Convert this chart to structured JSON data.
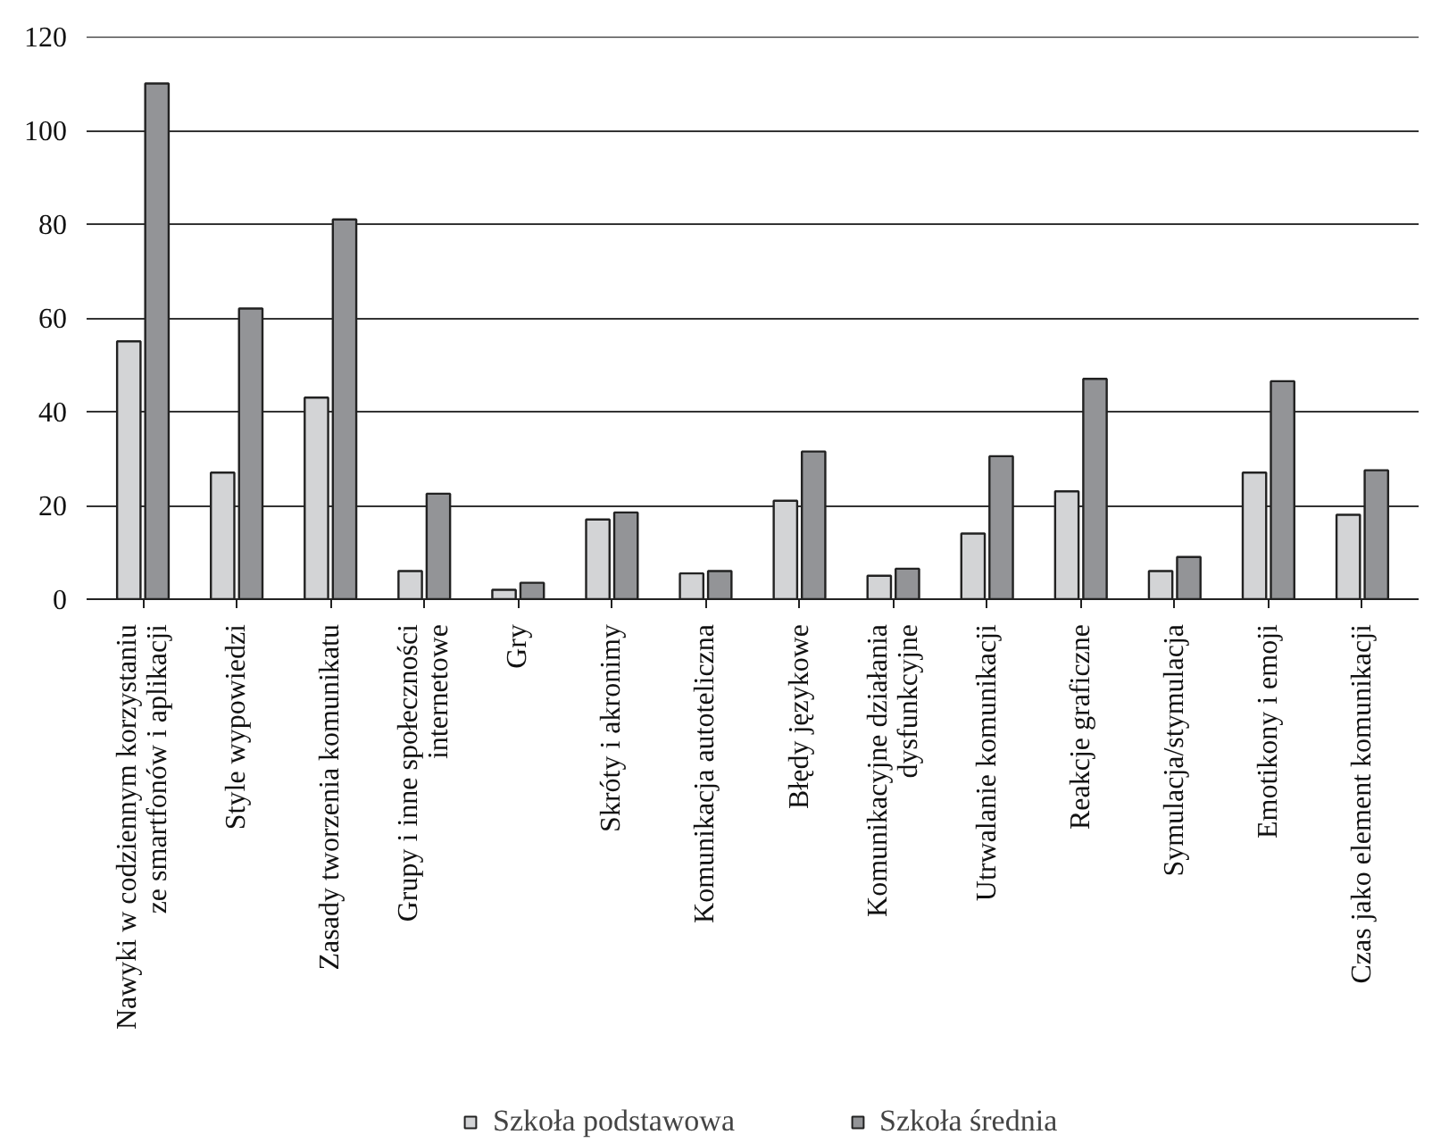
{
  "chart_data": {
    "type": "bar",
    "categories": [
      "Nawyki w codziennym korzystaniu\nze smartfonów i aplikacji",
      "Style wypowiedzi",
      "Zasady tworzenia komunikatu",
      "Grupy i inne społeczności\ninternetowe",
      "Gry",
      "Skróty i akronimy",
      "Komunikacja autoteliczna",
      "Błędy językowe",
      "Komunikacyjne działania\ndysfunkcyjne",
      "Utrwalanie komunikacji",
      "Reakcje graficzne",
      "Symulacja/stymulacja",
      "Emotikony i emoji",
      "Czas jako element komunikacji"
    ],
    "series": [
      {
        "name": "Szkoła podstawowa",
        "color": "#d3d4d6",
        "values": [
          55,
          27,
          43,
          6,
          2,
          17,
          5.5,
          21,
          5,
          14,
          23,
          6,
          27,
          18
        ]
      },
      {
        "name": "Szkoła średnia",
        "color": "#939497",
        "values": [
          110,
          62,
          81,
          22.5,
          3.5,
          18.5,
          6,
          31.5,
          6.5,
          30.5,
          47,
          9,
          46.5,
          27.5
        ]
      }
    ],
    "ylim": [
      0,
      120
    ],
    "yticks": [
      0,
      20,
      40,
      60,
      80,
      100,
      120
    ],
    "grid": "y",
    "legend": "bottom"
  }
}
